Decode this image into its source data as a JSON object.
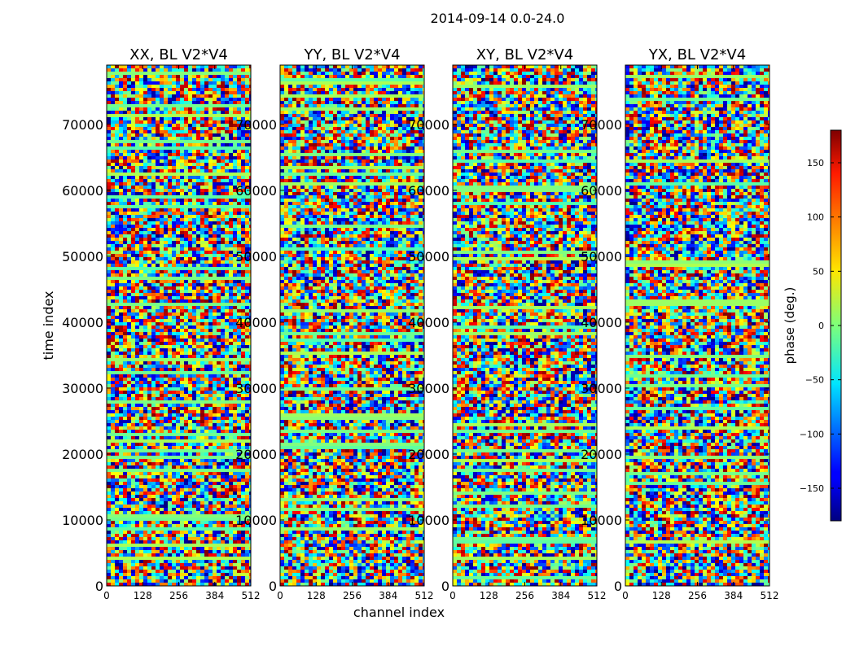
{
  "figure": {
    "suptitle": "2014-09-14 0.0-24.0"
  },
  "chart_data": {
    "type": "heatmap",
    "suptitle": "2014-09-14 0.0-24.0",
    "xlabel": "channel index",
    "ylabel": "time index",
    "xlim": [
      0,
      512
    ],
    "ylim": [
      0,
      79000
    ],
    "x_ticks": [
      0,
      128,
      256,
      384,
      512
    ],
    "x_tick_labels": [
      "0",
      "128",
      "256",
      "384",
      "512"
    ],
    "y_ticks": [
      0,
      10000,
      20000,
      30000,
      40000,
      50000,
      60000,
      70000
    ],
    "y_tick_labels": [
      "0",
      "10000",
      "20000",
      "30000",
      "40000",
      "50000",
      "60000",
      "70000"
    ],
    "panels": [
      {
        "title": "XX, BL V2*V4",
        "polarization": "XX"
      },
      {
        "title": "YY, BL V2*V4",
        "polarization": "YY"
      },
      {
        "title": "XY, BL V2*V4",
        "polarization": "XY"
      },
      {
        "title": "YX, BL V2*V4",
        "polarization": "YX"
      }
    ],
    "colorbar": {
      "label": "phase (deg.)",
      "colormap": "jet",
      "range": [
        -180,
        180
      ],
      "ticks": [
        -150,
        -100,
        -50,
        0,
        50,
        100,
        150
      ],
      "tick_labels": [
        "−150",
        "−100",
        "−50",
        "0",
        "50",
        "100",
        "150"
      ]
    }
  }
}
